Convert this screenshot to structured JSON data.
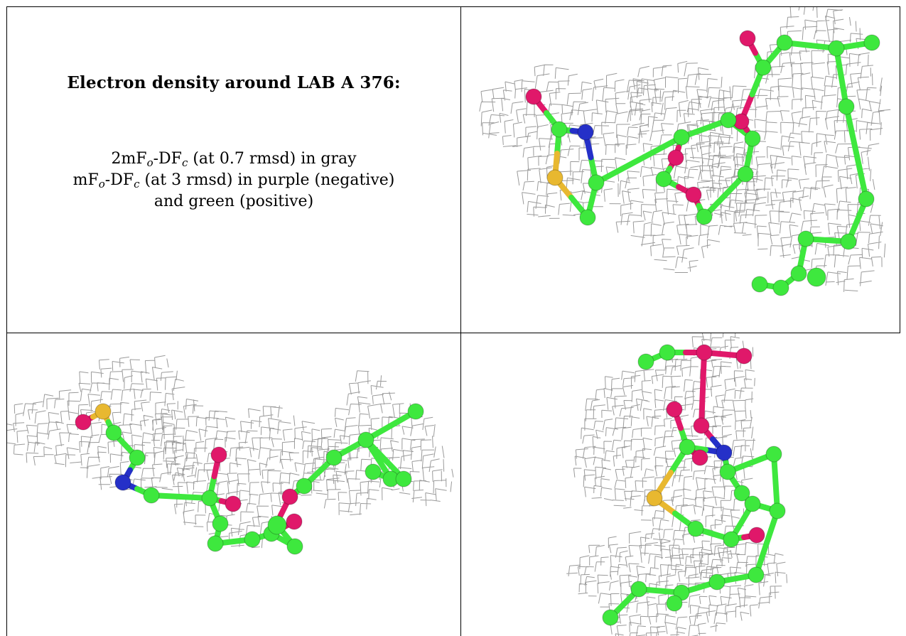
{
  "caption": {
    "title": "Electron density around LAB A 376:",
    "line1": {
      "prefix": "2mF",
      "sub1": "o",
      "mid": "-DF",
      "sub2": "c",
      "suffix": " (at 0.7 rmsd) in gray"
    },
    "line2": {
      "prefix": "mF",
      "sub1": "o",
      "mid": "-DF",
      "sub2": "c",
      "suffix": " (at 3 rmsd) in purple (negative)"
    },
    "line3": "and green (positive)"
  },
  "colors": {
    "carbon": "#3ee83e",
    "oxygen": "#e0186a",
    "nitrogen": "#2530c8",
    "sulfur": "#e8b830",
    "mesh": "#8e8e8e",
    "border": "#000000"
  },
  "panels": [
    "view-1",
    "view-2",
    "view-3"
  ]
}
